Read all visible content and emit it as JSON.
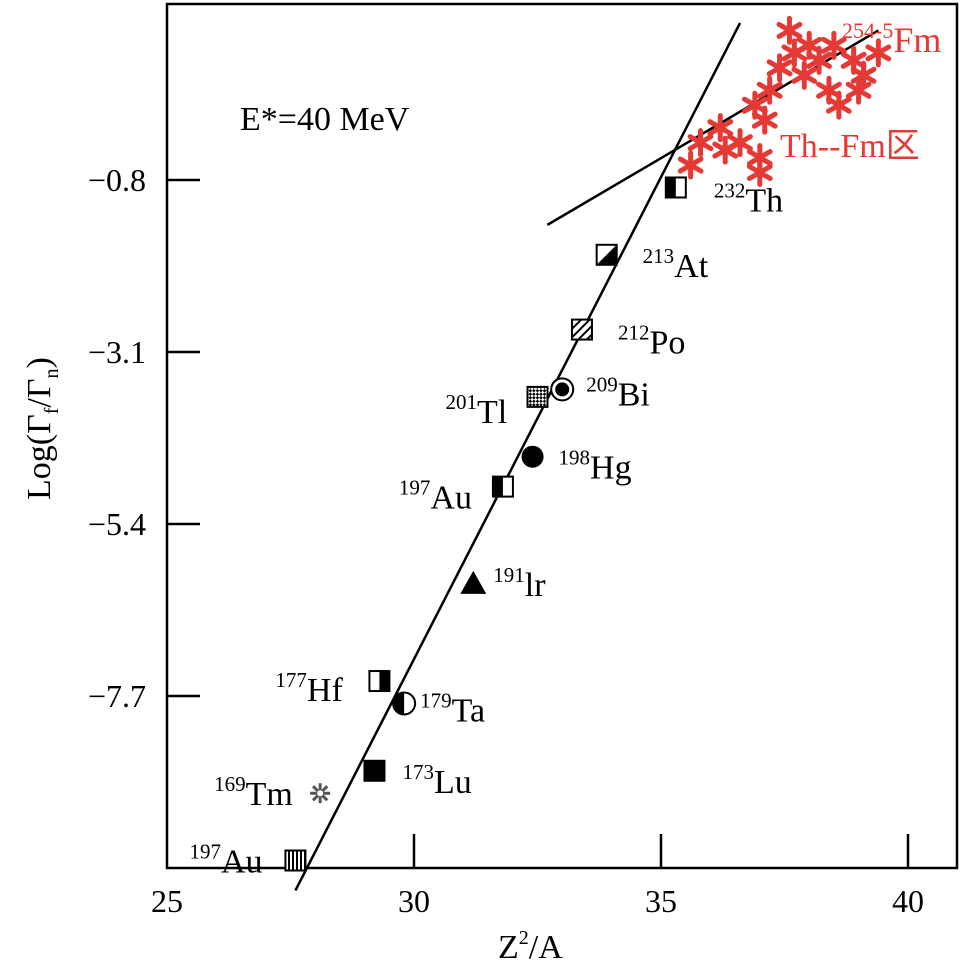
{
  "chart_data": {
    "type": "scatter",
    "annotation": "E*=40 MeV",
    "xlabel": {
      "main": "Z",
      "sup": "2",
      "rest": "/A"
    },
    "ylabel": {
      "pre": "Log(Γ",
      "sub1": "f",
      "mid": "/Γ",
      "sub2": "n",
      "post": ")"
    },
    "xlim": [
      25,
      41
    ],
    "ylim": [
      -10.3,
      1.5
    ],
    "x_ticks": [
      {
        "value": 25,
        "label": "25"
      },
      {
        "value": 30,
        "label": "30"
      },
      {
        "value": 35,
        "label": "35"
      },
      {
        "value": 40,
        "label": "40"
      }
    ],
    "y_ticks": [
      {
        "value": -0.8,
        "label": "−0.8"
      },
      {
        "value": -3.1,
        "label": "−3.1"
      },
      {
        "value": -5.4,
        "label": "−5.4"
      },
      {
        "value": -7.7,
        "label": "−7.7"
      }
    ],
    "fit_lines": [
      {
        "name": "main-fit",
        "x1": 27.6,
        "y1": -10.3,
        "x2": 36.6,
        "y2": 1.3
      },
      {
        "name": "th-fm-fit",
        "x1": 32.7,
        "y1": -1.4,
        "x2": 39.4,
        "y2": 1.2
      }
    ],
    "points": [
      {
        "x": 27.6,
        "y": -9.9,
        "mass": "197",
        "el": "Au",
        "marker": "square-vstripe",
        "label_side": "left"
      },
      {
        "x": 28.1,
        "y": -9.0,
        "mass": "169",
        "el": "Tm",
        "marker": "snowflake",
        "label_side": "left"
      },
      {
        "x": 29.2,
        "y": -8.7,
        "mass": "173",
        "el": "Lu",
        "marker": "square-filled",
        "label_side": "right"
      },
      {
        "x": 29.3,
        "y": -7.5,
        "mass": "177",
        "el": "Hf",
        "marker": "square-half-right",
        "label_side": "left"
      },
      {
        "x": 29.8,
        "y": -7.8,
        "mass": "179",
        "el": "Ta",
        "marker": "circle-half-left",
        "label_side": "right"
      },
      {
        "x": 31.2,
        "y": -6.2,
        "mass": "191",
        "el": "lr",
        "marker": "triangle-filled",
        "label_side": "right"
      },
      {
        "x": 31.8,
        "y": -4.9,
        "mass": "197",
        "el": "Au",
        "marker": "square-half-left",
        "label_side": "left"
      },
      {
        "x": 32.4,
        "y": -4.5,
        "mass": "198",
        "el": "Hg",
        "marker": "circle-filled",
        "label_side": "right"
      },
      {
        "x": 32.5,
        "y": -3.7,
        "mass": "201",
        "el": "Tl",
        "marker": "square-checker",
        "label_side": "left"
      },
      {
        "x": 33.0,
        "y": -3.6,
        "mass": "209",
        "el": "Bi",
        "marker": "circle-dot",
        "label_side": "right"
      },
      {
        "x": 33.4,
        "y": -2.8,
        "mass": "212",
        "el": "Po",
        "marker": "square-hatch",
        "label_side": "right"
      },
      {
        "x": 33.9,
        "y": -1.8,
        "mass": "213",
        "el": "At",
        "marker": "square-triangle",
        "label_side": "right"
      },
      {
        "x": 35.3,
        "y": -0.9,
        "mass": "232",
        "el": "Th",
        "marker": "square-half-left",
        "label_side": "right"
      }
    ],
    "region_points": [
      {
        "x": 35.6,
        "y": -0.6
      },
      {
        "x": 35.8,
        "y": -0.3
      },
      {
        "x": 36.2,
        "y": -0.1
      },
      {
        "x": 36.3,
        "y": -0.4
      },
      {
        "x": 36.6,
        "y": -0.3
      },
      {
        "x": 36.9,
        "y": 0.2
      },
      {
        "x": 37.0,
        "y": -0.7
      },
      {
        "x": 37.0,
        "y": -0.5
      },
      {
        "x": 37.1,
        "y": 0.0
      },
      {
        "x": 37.2,
        "y": 0.4
      },
      {
        "x": 37.4,
        "y": 0.7
      },
      {
        "x": 37.6,
        "y": 1.2
      },
      {
        "x": 37.7,
        "y": 0.9
      },
      {
        "x": 37.9,
        "y": 0.6
      },
      {
        "x": 38.0,
        "y": 1.0
      },
      {
        "x": 38.2,
        "y": 0.8
      },
      {
        "x": 38.4,
        "y": 0.4
      },
      {
        "x": 38.5,
        "y": 1.0
      },
      {
        "x": 38.6,
        "y": 0.2
      },
      {
        "x": 38.9,
        "y": 0.8
      },
      {
        "x": 39.1,
        "y": 0.6
      },
      {
        "x": 39.4,
        "y": 0.9
      },
      {
        "x": 39.0,
        "y": 0.4
      }
    ],
    "region_label": "Th--Fm区",
    "fm_label": {
      "mass": "254-5",
      "el": "Fm"
    },
    "colors": {
      "region": "#e53935",
      "ink": "#000000"
    }
  }
}
